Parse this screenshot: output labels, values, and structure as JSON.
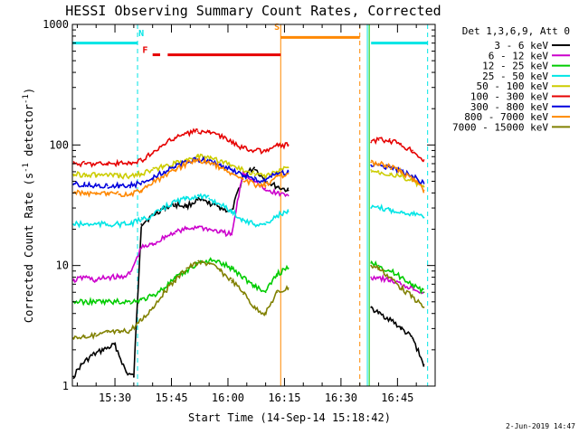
{
  "chart_data": {
    "type": "line",
    "title": "HESSI Observing Summary Count Rates, Corrected",
    "xlabel": "Start Time (14-Sep-14 15:18:42)",
    "ylabel_main": "Corrected Count Rate (s",
    "ylabel_sup1": "-1",
    "ylabel_mid": " detector",
    "ylabel_sup2": "-1",
    "ylabel_end": ")",
    "y_scale": "log",
    "ylim": [
      1,
      1000
    ],
    "xlim": [
      "15:18:42",
      "16:55:00"
    ],
    "x_ticks": [
      "15:30",
      "15:45",
      "16:00",
      "16:15",
      "16:30",
      "16:45"
    ],
    "y_ticks": [
      "1",
      "10",
      "100",
      "1000"
    ],
    "legend_header": "Det 1,3,6,9, Att 0",
    "date_stamp": "2-Jun-2019 14:47",
    "grid": false,
    "legend_position": "right",
    "series": [
      {
        "name": "3 - 6 keV",
        "color": "#000000",
        "x": [
          "15:19",
          "15:21",
          "15:24",
          "15:27",
          "15:30",
          "15:33",
          "15:35",
          "15:37",
          "15:40",
          "15:43",
          "15:46",
          "15:49",
          "15:52",
          "15:55",
          "15:58",
          "16:01",
          "16:04",
          "16:07",
          "16:10",
          "16:13",
          "16:16",
          "16:38",
          "16:40",
          "16:43",
          "16:46",
          "16:49",
          "16:52"
        ],
        "values": [
          1.2,
          1.5,
          1.8,
          2.0,
          2.2,
          1.3,
          1.2,
          22,
          26,
          30,
          32,
          31,
          35,
          33,
          30,
          28,
          55,
          65,
          50,
          45,
          42,
          4.5,
          4.0,
          3.6,
          3.0,
          2.5,
          1.5
        ]
      },
      {
        "name": "6 - 12 keV",
        "color": "#cc00cc",
        "x": [
          "15:19",
          "15:22",
          "15:25",
          "15:28",
          "15:31",
          "15:34",
          "15:37",
          "15:40",
          "15:43",
          "15:46",
          "15:49",
          "15:52",
          "15:55",
          "15:58",
          "16:01",
          "16:04",
          "16:07",
          "16:10",
          "16:13",
          "16:16",
          "16:38",
          "16:40",
          "16:43",
          "16:46",
          "16:49",
          "16:52"
        ],
        "values": [
          7.5,
          8.0,
          7.5,
          8.0,
          8.0,
          8.5,
          14,
          15,
          17,
          19,
          20,
          21,
          20,
          19,
          18,
          60,
          50,
          42,
          40,
          38,
          8.0,
          8.0,
          7.5,
          7.0,
          6.5,
          6.0
        ]
      },
      {
        "name": "12 - 25 keV",
        "color": "#00cc00",
        "x": [
          "15:19",
          "15:22",
          "15:25",
          "15:28",
          "15:31",
          "15:34",
          "15:37",
          "15:40",
          "15:43",
          "15:46",
          "15:49",
          "15:52",
          "15:55",
          "15:58",
          "16:01",
          "16:04",
          "16:07",
          "16:10",
          "16:13",
          "16:16",
          "16:38",
          "16:40",
          "16:43",
          "16:46",
          "16:49",
          "16:52"
        ],
        "values": [
          5.0,
          5.0,
          5.0,
          5.0,
          5.0,
          5.0,
          5.2,
          5.6,
          6.5,
          7.8,
          9.0,
          10.5,
          11.0,
          10.5,
          9.5,
          8.0,
          6.8,
          6.0,
          8.5,
          9.5,
          10.5,
          10.0,
          9.0,
          8.0,
          7.0,
          6.0
        ]
      },
      {
        "name": "25 - 50 keV",
        "color": "#00e5e5",
        "x": [
          "15:19",
          "15:22",
          "15:25",
          "15:28",
          "15:31",
          "15:34",
          "15:37",
          "15:40",
          "15:43",
          "15:46",
          "15:49",
          "15:52",
          "15:55",
          "15:58",
          "16:01",
          "16:04",
          "16:07",
          "16:10",
          "16:13",
          "16:16",
          "16:38",
          "16:40",
          "16:43",
          "16:46",
          "16:49",
          "16:52"
        ],
        "values": [
          22,
          22,
          22,
          22,
          22,
          22,
          24,
          26,
          30,
          34,
          36,
          38,
          36,
          32,
          28,
          24,
          22,
          22,
          26,
          28,
          30,
          30,
          29,
          28,
          27,
          25
        ]
      },
      {
        "name": "50 - 100 keV",
        "color": "#cccc00",
        "x": [
          "15:19",
          "15:22",
          "15:25",
          "15:28",
          "15:31",
          "15:34",
          "15:37",
          "15:40",
          "15:43",
          "15:46",
          "15:49",
          "15:52",
          "15:55",
          "15:58",
          "16:01",
          "16:04",
          "16:07",
          "16:10",
          "16:13",
          "16:16",
          "16:38",
          "16:40",
          "16:43",
          "16:46",
          "16:49",
          "16:52"
        ],
        "values": [
          57,
          57,
          56,
          56,
          55,
          55,
          58,
          62,
          66,
          70,
          76,
          80,
          78,
          74,
          68,
          62,
          58,
          55,
          60,
          65,
          62,
          60,
          58,
          55,
          50,
          45
        ]
      },
      {
        "name": "100 - 300 keV",
        "color": "#e60000",
        "x": [
          "15:19",
          "15:22",
          "15:25",
          "15:28",
          "15:31",
          "15:34",
          "15:37",
          "15:40",
          "15:43",
          "15:46",
          "15:49",
          "15:52",
          "15:55",
          "15:58",
          "16:01",
          "16:04",
          "16:07",
          "16:10",
          "16:13",
          "16:16",
          "16:38",
          "16:40",
          "16:43",
          "16:46",
          "16:49",
          "16:52"
        ],
        "values": [
          70,
          70,
          70,
          70,
          70,
          70,
          75,
          85,
          100,
          115,
          125,
          130,
          128,
          118,
          105,
          95,
          90,
          88,
          100,
          100,
          105,
          110,
          108,
          100,
          90,
          75
        ]
      },
      {
        "name": "300 - 800 keV",
        "color": "#0000dd",
        "x": [
          "15:19",
          "15:22",
          "15:25",
          "15:28",
          "15:31",
          "15:34",
          "15:37",
          "15:40",
          "15:43",
          "15:46",
          "15:49",
          "15:52",
          "15:55",
          "15:58",
          "16:01",
          "16:04",
          "16:07",
          "16:10",
          "16:13",
          "16:16",
          "16:38",
          "16:40",
          "16:43",
          "16:46",
          "16:49",
          "16:52"
        ],
        "values": [
          47,
          47,
          46,
          46,
          46,
          46,
          48,
          53,
          60,
          66,
          72,
          76,
          74,
          68,
          62,
          56,
          52,
          50,
          58,
          60,
          68,
          68,
          65,
          60,
          55,
          48
        ]
      },
      {
        "name": "800 - 7000 keV",
        "color": "#ff8800",
        "x": [
          "15:19",
          "15:22",
          "15:25",
          "15:28",
          "15:31",
          "15:34",
          "15:37",
          "15:40",
          "15:43",
          "15:46",
          "15:49",
          "15:52",
          "15:55",
          "15:58",
          "16:01",
          "16:04",
          "16:07",
          "16:10",
          "16:13",
          "16:16",
          "16:38",
          "16:40",
          "16:43",
          "16:46",
          "16:49",
          "16:52"
        ],
        "values": [
          40,
          40,
          39,
          39,
          39,
          39,
          42,
          48,
          55,
          62,
          70,
          74,
          72,
          65,
          58,
          52,
          47,
          46,
          55,
          58,
          72,
          70,
          66,
          60,
          52,
          42
        ]
      },
      {
        "name": "7000 - 15000 keV",
        "color": "#808000",
        "x": [
          "15:19",
          "15:22",
          "15:25",
          "15:28",
          "15:31",
          "15:34",
          "15:37",
          "15:40",
          "15:43",
          "15:46",
          "15:49",
          "15:52",
          "15:55",
          "15:58",
          "16:01",
          "16:04",
          "16:07",
          "16:10",
          "16:13",
          "16:16",
          "16:38",
          "16:40",
          "16:43",
          "16:46",
          "16:49",
          "16:52"
        ],
        "values": [
          2.5,
          2.6,
          2.6,
          2.8,
          2.8,
          2.9,
          3.5,
          4.5,
          6.0,
          7.5,
          9.5,
          10.5,
          10.5,
          9.0,
          7.5,
          6.0,
          4.5,
          4.0,
          6.0,
          6.5,
          10.0,
          9.5,
          8.0,
          6.5,
          5.5,
          4.5
        ]
      }
    ],
    "flags": [
      {
        "label": "N",
        "color": "#00e5e5",
        "x_label": "15:37",
        "y_value": 800
      },
      {
        "label": "F",
        "color": "#e60000",
        "x_label": "15:38",
        "y_value": 580
      },
      {
        "label": "S",
        "color": "#ff8800",
        "x_label": "16:13",
        "y_value": 900
      }
    ],
    "segments": [
      {
        "color": "#00e5e5",
        "y_value": 700,
        "x_from": "15:18:42",
        "x_to": "15:36"
      },
      {
        "color": "#00e5e5",
        "y_value": 700,
        "x_from": "16:38",
        "x_to": "16:53"
      },
      {
        "color": "#e60000",
        "y_value": 560,
        "x_from": "15:40",
        "x_to": "15:42"
      },
      {
        "color": "#e60000",
        "y_value": 560,
        "x_from": "15:44",
        "x_to": "16:14"
      },
      {
        "color": "#ff8800",
        "y_value": 780,
        "x_from": "16:14",
        "x_to": "16:35"
      }
    ],
    "vlines": [
      {
        "color": "#00e5e5",
        "x_value": "15:18:42",
        "style": "solid"
      },
      {
        "color": "#00e5e5",
        "x_value": "15:36",
        "style": "dashed"
      },
      {
        "color": "#ff8800",
        "x_value": "16:14",
        "style": "solid"
      },
      {
        "color": "#ff8800",
        "x_value": "16:35",
        "style": "dashed"
      },
      {
        "color": "#00e5e5",
        "x_value": "16:37",
        "style": "solid"
      },
      {
        "color": "#00cc00",
        "x_value": "16:37:30",
        "style": "solid"
      },
      {
        "color": "#00e5e5",
        "x_value": "16:53",
        "style": "dashed"
      }
    ]
  }
}
